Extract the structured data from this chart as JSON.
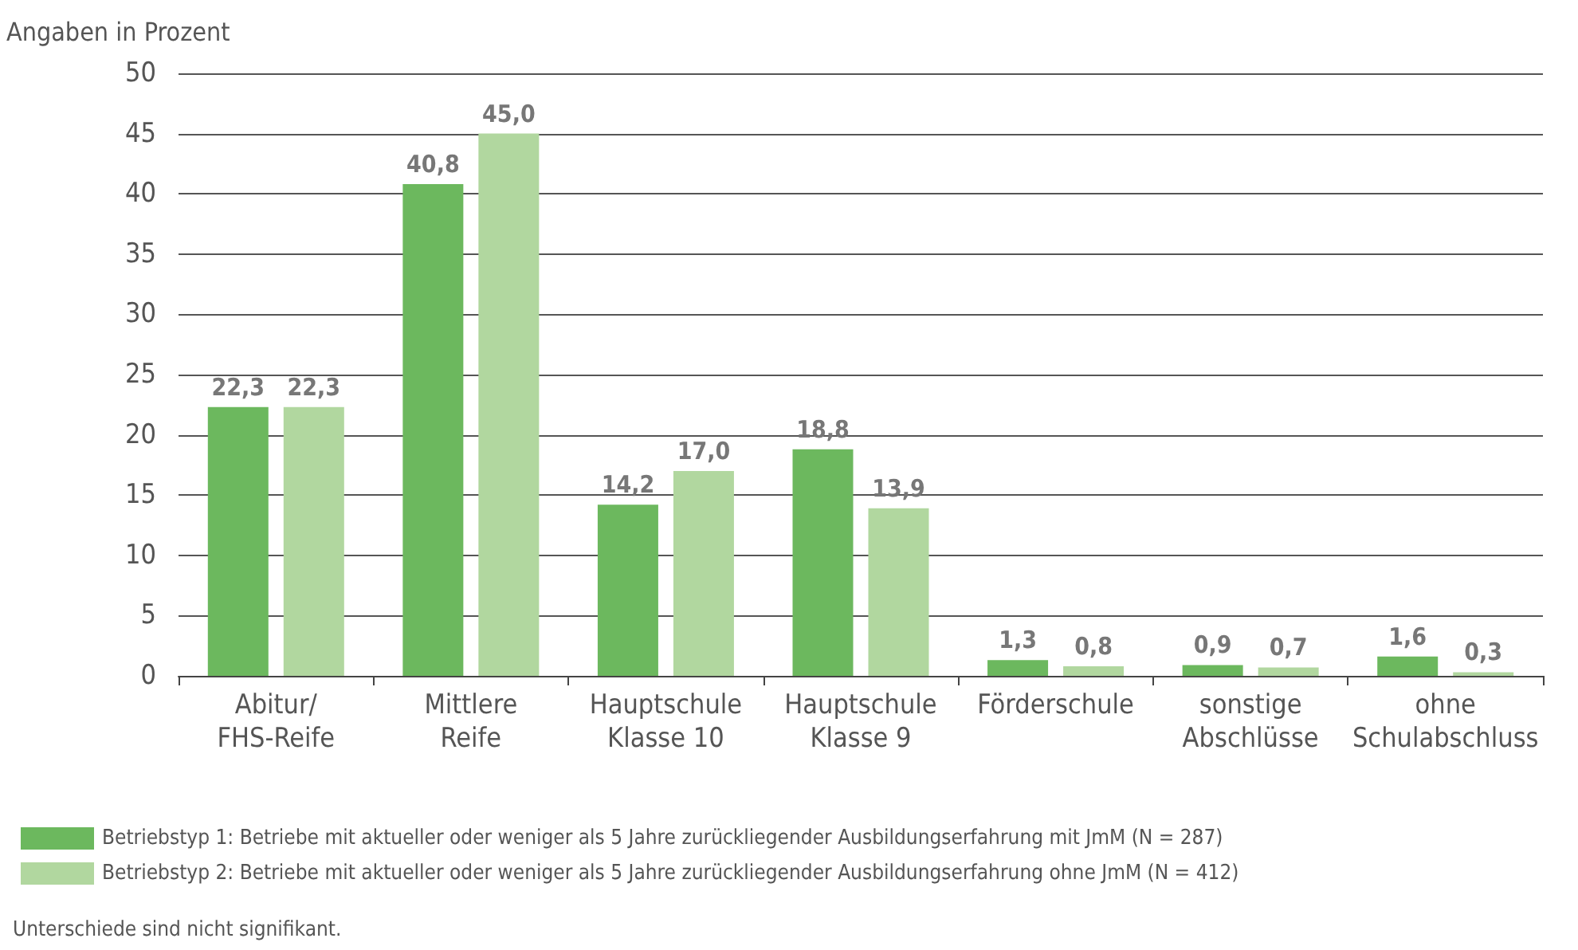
{
  "chart_data": {
    "type": "bar",
    "ylabel": "Angaben in Prozent",
    "categories": [
      "Abitur/\nFHS-Reife",
      "Mittlere\nReife",
      "Hauptschule\nKlasse 10",
      "Hauptschule\nKlasse 9",
      "Förderschule",
      "sonstige\nAbschlüsse",
      "ohne\nSchulabschluss"
    ],
    "series": [
      {
        "name": "Betriebstyp 1: Betriebe mit aktueller oder weniger als 5 Jahre zurückliegender Ausbildungserfahrung mit JmM (N = 287)",
        "color": "#6cb85e",
        "values": [
          22.3,
          40.8,
          14.2,
          18.8,
          1.3,
          0.9,
          1.6
        ],
        "value_labels": [
          "22,3",
          "40,8",
          "14,2",
          "18,8",
          "1,3",
          "0,9",
          "1,6"
        ]
      },
      {
        "name": "Betriebstyp 2: Betriebe mit aktueller oder weniger als 5 Jahre zurückliegender Ausbildungserfahrung ohne JmM (N = 412)",
        "color": "#b1d79f",
        "values": [
          22.3,
          45.0,
          17.0,
          13.9,
          0.8,
          0.7,
          0.3
        ],
        "value_labels": [
          "22,3",
          "45,0",
          "17,0",
          "13,9",
          "0,8",
          "0,7",
          "0,3"
        ]
      }
    ],
    "ylim": [
      0,
      50
    ],
    "yticks": [
      0,
      5,
      10,
      15,
      20,
      25,
      30,
      35,
      40,
      45,
      50
    ],
    "grid": "y",
    "legend": "bottom",
    "annotations": [
      "Unterschiede sind nicht signifikant."
    ]
  }
}
